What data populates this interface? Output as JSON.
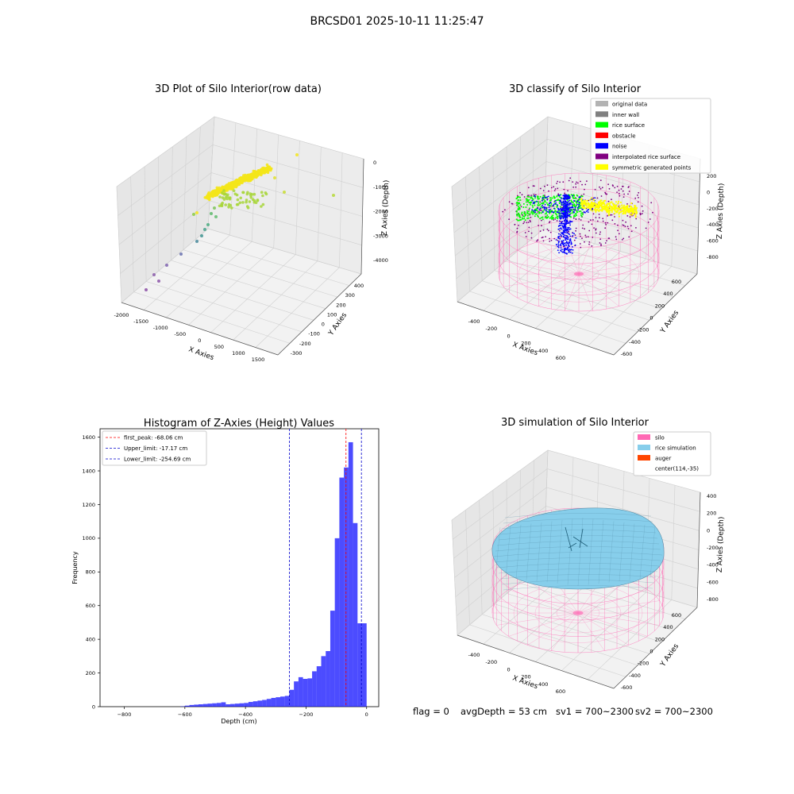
{
  "suptitle": "BRCSD01 2025-10-11 11:25:47",
  "chart_data": [
    {
      "id": "raw",
      "type": "scatter",
      "title": "3D Plot of Silo Interior(row data)",
      "xlabel": "X Axies",
      "ylabel": "Y Axies",
      "zlabel": "Z Axies (Depth)",
      "x_ticks": [
        "-2000",
        "-1500",
        "-1000",
        "-500",
        "0",
        "500",
        "1000",
        "1500"
      ],
      "y_ticks": [
        "-300",
        "-200",
        "-100",
        "0",
        "100",
        "200",
        "300",
        "400"
      ],
      "z_ticks": [
        "0",
        "-1000",
        "-2000",
        "-3000",
        "-4000"
      ],
      "grid": true
    },
    {
      "id": "classify",
      "type": "scatter",
      "title": "3D classify of Silo Interior",
      "xlabel": "X Axies",
      "ylabel": "Y Axies",
      "zlabel": "Z Axies (Depth)",
      "x_ticks": [
        "-400",
        "-200",
        "0",
        "200",
        "400",
        "600"
      ],
      "y_ticks": [
        "-600",
        "-400",
        "-200",
        "0",
        "200",
        "400",
        "600"
      ],
      "z_ticks": [
        "200",
        "0",
        "-200",
        "-400",
        "-600",
        "-800"
      ],
      "legend_position": "top-right",
      "legend": [
        {
          "label": "original data",
          "color": "#b3b3b3"
        },
        {
          "label": "inner wall",
          "color": "#808080"
        },
        {
          "label": "rice surface",
          "color": "#00ff00"
        },
        {
          "label": "obstacle",
          "color": "#ff0000"
        },
        {
          "label": "noise",
          "color": "#0000ff"
        },
        {
          "label": "interpolated rice surface",
          "color": "#800080"
        },
        {
          "label": "symmetric generated points",
          "color": "#ffff00"
        }
      ],
      "grid": true
    },
    {
      "id": "hist",
      "type": "bar",
      "title": "Histogram of Z-Axies (Height) Values",
      "xlabel": "Depth (cm)",
      "ylabel": "Frequency",
      "xlim": [
        -880,
        40
      ],
      "ylim": [
        0,
        1650
      ],
      "x_ticks": [
        -800,
        -600,
        -400,
        -200,
        0
      ],
      "y_ticks": [
        0,
        200,
        400,
        600,
        800,
        1000,
        1200,
        1400,
        1600
      ],
      "bin_width": 15,
      "bins_start": [
        -615,
        -600,
        -585,
        -570,
        -555,
        -540,
        -525,
        -510,
        -495,
        -480,
        -465,
        -450,
        -435,
        -420,
        -405,
        -390,
        -375,
        -360,
        -345,
        -330,
        -315,
        -300,
        -285,
        -270,
        -255,
        -240,
        -225,
        -210,
        -195,
        -180,
        -165,
        -150,
        -135,
        -120,
        -105,
        -90,
        -75,
        -60,
        -45,
        -30,
        -15
      ],
      "values": [
        2,
        6,
        10,
        12,
        14,
        16,
        18,
        20,
        22,
        26,
        14,
        16,
        18,
        20,
        22,
        28,
        32,
        36,
        40,
        46,
        52,
        56,
        60,
        64,
        100,
        150,
        175,
        165,
        168,
        210,
        240,
        300,
        330,
        570,
        1000,
        1360,
        1420,
        1570,
        1090,
        495,
        495
      ],
      "bar_color": "#0000ff",
      "lines": [
        {
          "label": "first_peak: -68.06 cm",
          "x": -68.06,
          "color": "#ff0000"
        },
        {
          "label": "Upper_limit: -17.17 cm",
          "x": -17.17,
          "color": "#0000cc"
        },
        {
          "label": "Lower_limit: -254.69 cm",
          "x": -254.69,
          "color": "#0000cc"
        }
      ],
      "legend_position": "top-left",
      "grid": false
    },
    {
      "id": "sim",
      "type": "scatter",
      "title": "3D simulation of Silo Interior",
      "xlabel": "X Axies",
      "ylabel": "Y Axies",
      "zlabel": "Z Axies (Depth)",
      "x_ticks": [
        "-400",
        "-200",
        "0",
        "200",
        "400",
        "600"
      ],
      "y_ticks": [
        "-600",
        "-400",
        "-200",
        "0",
        "200",
        "400",
        "600"
      ],
      "z_ticks": [
        "400",
        "200",
        "0",
        "-200",
        "-400",
        "-600",
        "-800"
      ],
      "legend_position": "top-right",
      "legend": [
        {
          "label": "silo",
          "color": "#ff69b4"
        },
        {
          "label": "rice simulation",
          "color": "#87ceeb"
        },
        {
          "label": "auger",
          "color": "#ff4500"
        },
        {
          "label": "center(114,-35)",
          "color": "none"
        }
      ],
      "grid": true
    }
  ],
  "footer": {
    "flag": "flag = 0",
    "avg_depth": "avgDepth = 53 cm",
    "sv1": "sv1 = 700~2300",
    "sv2": "sv2 = 700~2300"
  }
}
